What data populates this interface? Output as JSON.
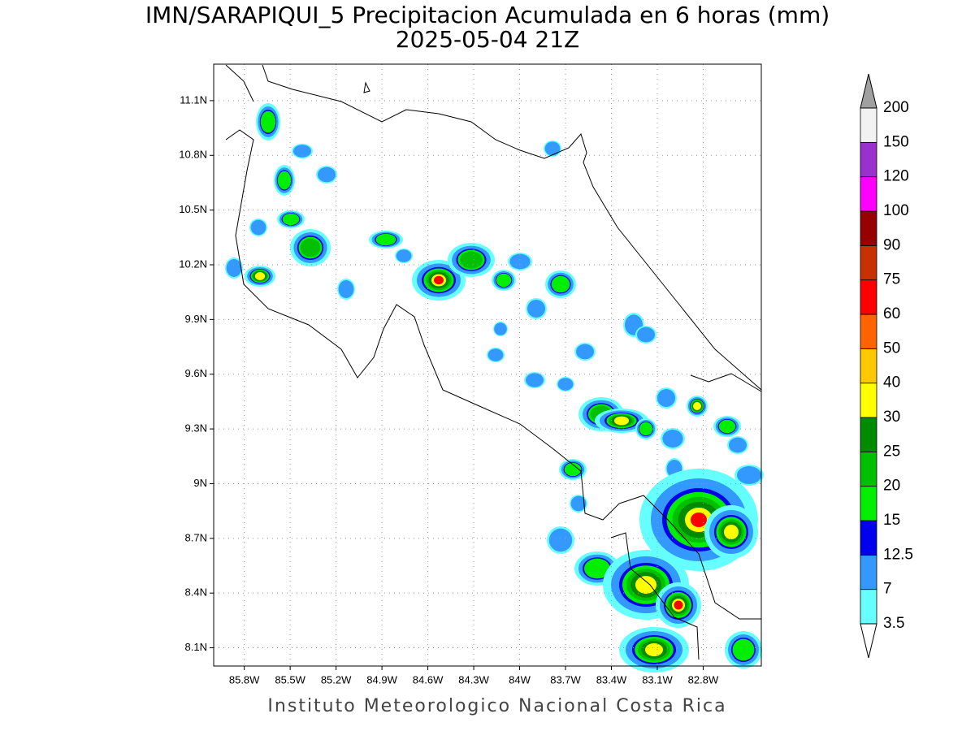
{
  "header": {
    "title": "IMN/SARAPIQUI_5 Precipitacion Acumulada en 6 horas (mm)",
    "subtitle": "2025-05-04 21Z"
  },
  "map": {
    "lon_range": [
      -86.0,
      -82.42
    ],
    "lat_range": [
      8.0,
      11.3
    ],
    "lon_ticks": [
      {
        "value": -85.8,
        "label": "85.8W"
      },
      {
        "value": -85.5,
        "label": "85.5W"
      },
      {
        "value": -85.2,
        "label": "85.2W"
      },
      {
        "value": -84.9,
        "label": "84.9W"
      },
      {
        "value": -84.6,
        "label": "84.6W"
      },
      {
        "value": -84.3,
        "label": "84.3W"
      },
      {
        "value": -84.0,
        "label": "84W"
      },
      {
        "value": -83.7,
        "label": "83.7W"
      },
      {
        "value": -83.4,
        "label": "83.4W"
      },
      {
        "value": -83.1,
        "label": "83.1W"
      },
      {
        "value": -82.8,
        "label": "82.8W"
      }
    ],
    "lat_ticks": [
      {
        "value": 8.1,
        "label": "8.1N"
      },
      {
        "value": 8.4,
        "label": "8.4N"
      },
      {
        "value": 8.7,
        "label": "8.7N"
      },
      {
        "value": 9.0,
        "label": "9N"
      },
      {
        "value": 9.3,
        "label": "9.3N"
      },
      {
        "value": 9.6,
        "label": "9.6N"
      },
      {
        "value": 9.9,
        "label": "9.9N"
      },
      {
        "value": 10.2,
        "label": "10.2N"
      },
      {
        "value": 10.5,
        "label": "10.5N"
      },
      {
        "value": 10.8,
        "label": "10.8N"
      },
      {
        "value": 11.1,
        "label": "11.1N"
      }
    ]
  },
  "colorbar": {
    "levels": [
      3.5,
      7,
      12.5,
      15,
      20,
      25,
      30,
      40,
      50,
      60,
      75,
      90,
      100,
      120,
      150,
      200
    ],
    "colors": [
      "#66ffff",
      "#3399ff",
      "#0000ee",
      "#00ee00",
      "#00c000",
      "#008c00",
      "#ffff00",
      "#ffc800",
      "#ff6400",
      "#ff0000",
      "#c83200",
      "#960000",
      "#ff00ff",
      "#9932cc",
      "#f2f2f2"
    ],
    "under_color": "#ffffff",
    "over_color": "#a0a0a0"
  },
  "footer": "Instituto Meteorologico Nacional Costa Rica"
}
